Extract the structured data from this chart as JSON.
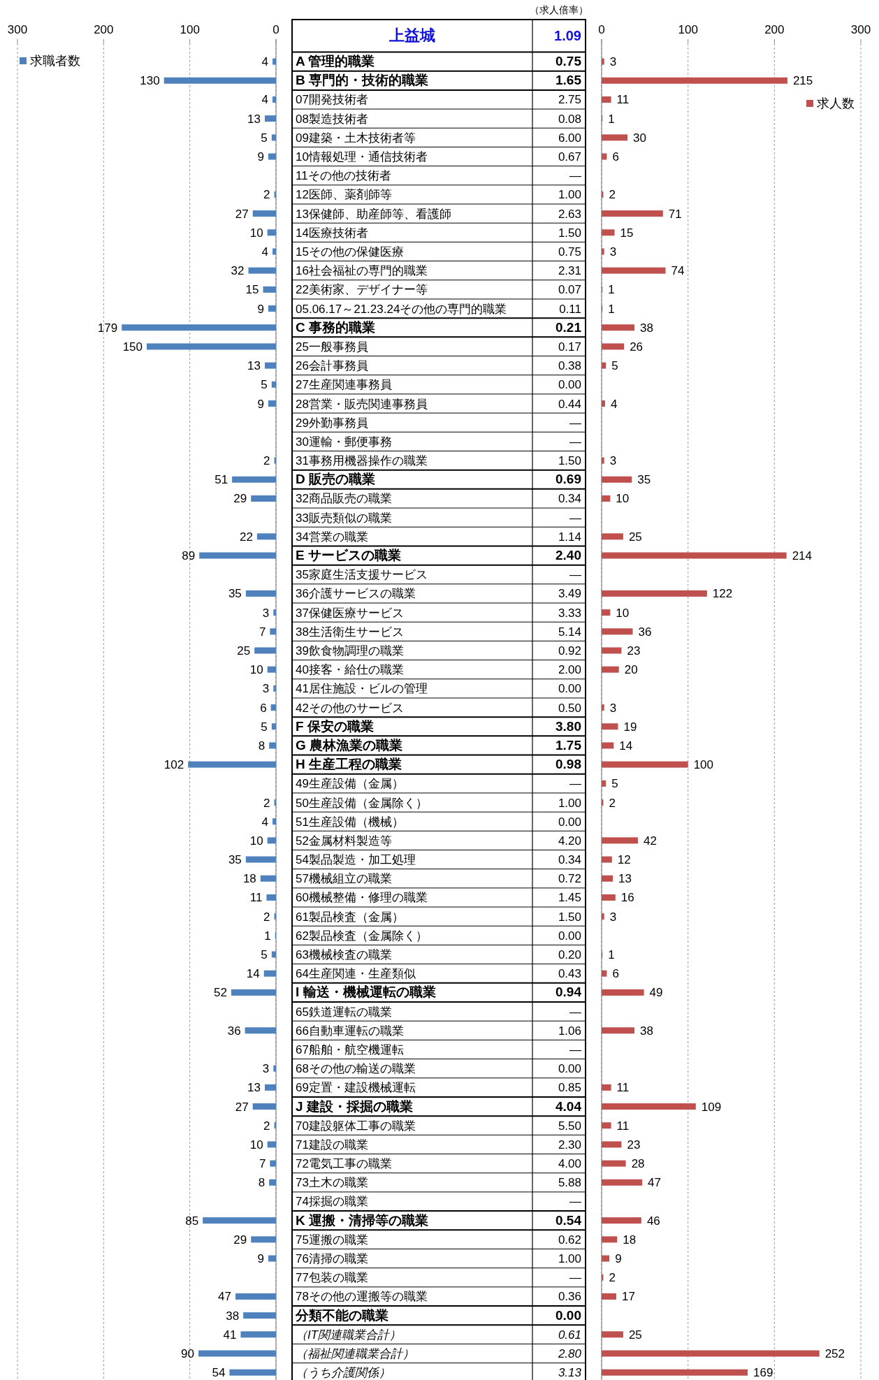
{
  "chart_data": [
    {
      "type": "bar",
      "orientation": "horizontal",
      "title": "上益城",
      "xlim": [
        300,
        0
      ],
      "xticks": [
        300,
        200,
        100,
        0
      ],
      "grid": "x",
      "legend": "top left",
      "data_labels": true,
      "categories": [
        "A 管理的職業",
        "B 専門的・技術的職業",
        "07開発技術者",
        "08製造技術者",
        "09建築・土木技術者等",
        "10情報処理・通信技術者",
        "11その他の技術者",
        "12医師、薬剤師等",
        "13保健師、助産師等、看護師",
        "14医療技術者",
        "15その他の保健医療",
        "16社会福祉の専門的職業",
        "22美術家、デザイナー等",
        "05.06.17～21.23.24その他の専門的職業",
        "C 事務的職業",
        "25一般事務員",
        "26会計事務員",
        "27生産関連事務員",
        "28営業・販売関連事務員",
        "29外勤事務員",
        "30運輸・郵便事務",
        "31事務用機器操作の職業",
        "D 販売の職業",
        "32商品販売の職業",
        "33販売類似の職業",
        "34営業の職業",
        "E サービスの職業",
        "35家庭生活支援サービス",
        "36介護サービスの職業",
        "37保健医療サービス",
        "38生活衛生サービス",
        "39飲食物調理の職業",
        "40接客・給仕の職業",
        "41居住施設・ビルの管理",
        "42その他のサービス",
        "F 保安の職業",
        "G 農林漁業の職業",
        "H 生産工程の職業",
        "49生産設備（金属）",
        "50生産設備（金属除く）",
        "51生産設備（機械）",
        "52金属材料製造等",
        "54製品製造・加工処理",
        "57機械組立の職業",
        "60機械整備・修理の職業",
        "61製品検査（金属）",
        "62製品検査（金属除く）",
        "63機械検査の職業",
        "64生産関連・生産類似",
        "I 輸送・機械運転の職業",
        "65鉄道運転の職業",
        "66自動車運転の職業",
        "67船舶・航空機運転",
        "68その他の輸送の職業",
        "69定置・建設機械運転",
        "J 建設・採掘の職業",
        "70建設躯体工事の職業",
        "71建設の職業",
        "72電気工事の職業",
        "73土木の職業",
        "74採掘の職業",
        "K 運搬・清掃等の職業",
        "75運搬の職業",
        "76清掃の職業",
        "77包装の職業",
        "78その他の運搬等の職業",
        "分類不能の職業",
        "（IT関連職業合計）",
        "（福祉関連職業合計）",
        "（うち介護関係）"
      ],
      "series": [
        {
          "name": "求職者数",
          "color": "#4f81bd",
          "values": [
            4,
            130,
            4,
            13,
            5,
            9,
            null,
            2,
            27,
            10,
            4,
            32,
            15,
            9,
            179,
            150,
            13,
            5,
            9,
            null,
            null,
            2,
            51,
            29,
            null,
            22,
            89,
            null,
            35,
            3,
            7,
            25,
            10,
            3,
            6,
            5,
            8,
            102,
            null,
            2,
            4,
            10,
            35,
            18,
            11,
            2,
            1,
            5,
            14,
            52,
            null,
            36,
            null,
            3,
            13,
            27,
            2,
            10,
            7,
            8,
            null,
            85,
            29,
            9,
            null,
            47,
            38,
            41,
            90,
            54
          ]
        }
      ]
    },
    {
      "type": "bar",
      "orientation": "horizontal",
      "xlim": [
        0,
        300
      ],
      "xticks": [
        0,
        100,
        200,
        300
      ],
      "grid": "x",
      "legend": "top right",
      "data_labels": true,
      "categories": [
        null,
        null,
        null,
        null,
        null,
        null,
        null,
        null,
        null,
        null,
        null,
        null,
        null,
        null,
        null,
        null,
        null,
        null,
        null,
        null,
        null,
        null,
        null,
        null,
        null,
        null,
        null,
        null,
        null,
        null,
        null,
        null,
        null,
        null,
        null,
        null,
        null,
        null,
        null,
        null,
        null,
        null,
        null,
        null,
        null,
        null,
        null,
        null,
        null,
        null,
        null,
        null,
        null,
        null,
        null,
        null,
        null,
        null,
        null,
        null,
        null,
        null,
        null,
        null,
        null,
        null,
        null,
        null,
        null,
        null
      ],
      "series": [
        {
          "name": "求人数",
          "color": "#c0504d",
          "values": [
            3,
            215,
            11,
            1,
            30,
            6,
            null,
            2,
            71,
            15,
            3,
            74,
            1,
            1,
            38,
            26,
            5,
            null,
            4,
            null,
            null,
            3,
            35,
            10,
            null,
            25,
            214,
            null,
            122,
            10,
            36,
            23,
            20,
            null,
            3,
            19,
            14,
            100,
            5,
            2,
            null,
            42,
            12,
            13,
            16,
            3,
            null,
            1,
            6,
            49,
            null,
            38,
            null,
            null,
            11,
            109,
            11,
            23,
            28,
            47,
            null,
            46,
            18,
            9,
            2,
            17,
            null,
            25,
            252,
            169
          ]
        }
      ]
    },
    {
      "type": "other",
      "title": "（求人倍率）",
      "annotations": [
        "1.09"
      ],
      "categories": [
        null,
        null,
        null,
        null,
        null,
        null,
        null,
        null,
        null,
        null,
        null,
        null,
        null,
        null,
        null,
        null,
        null,
        null,
        null,
        null,
        null,
        null,
        null,
        null,
        null,
        null,
        null,
        null,
        null,
        null,
        null,
        null,
        null,
        null,
        null,
        null,
        null,
        null,
        null,
        null,
        null,
        null,
        null,
        null,
        null,
        null,
        null,
        null,
        null,
        null,
        null,
        null,
        null,
        null,
        null,
        null,
        null,
        null,
        null,
        null,
        null,
        null,
        null,
        null,
        null,
        null,
        null,
        null,
        null,
        null
      ],
      "value_labels": [
        "0.75",
        "1.65",
        "2.75",
        "0.08",
        "6.00",
        "0.67",
        "—",
        "1.00",
        "2.63",
        "1.50",
        "0.75",
        "2.31",
        "0.07",
        "0.11",
        "0.21",
        "0.17",
        "0.38",
        "0.00",
        "0.44",
        "—",
        "—",
        "1.50",
        "0.69",
        "0.34",
        "—",
        "1.14",
        "2.40",
        "—",
        "3.49",
        "3.33",
        "5.14",
        "0.92",
        "2.00",
        "0.00",
        "0.50",
        "3.80",
        "1.75",
        "0.98",
        "—",
        "1.00",
        "0.00",
        "4.20",
        "0.34",
        "0.72",
        "1.45",
        "1.50",
        "0.00",
        "0.20",
        "0.43",
        "0.94",
        "—",
        "1.06",
        "—",
        "0.00",
        "0.85",
        "4.04",
        "5.50",
        "2.30",
        "4.00",
        "5.88",
        "—",
        "0.54",
        "0.62",
        "1.00",
        "—",
        "0.36",
        "0.00",
        "0.61",
        "2.80",
        "3.13"
      ]
    }
  ]
}
